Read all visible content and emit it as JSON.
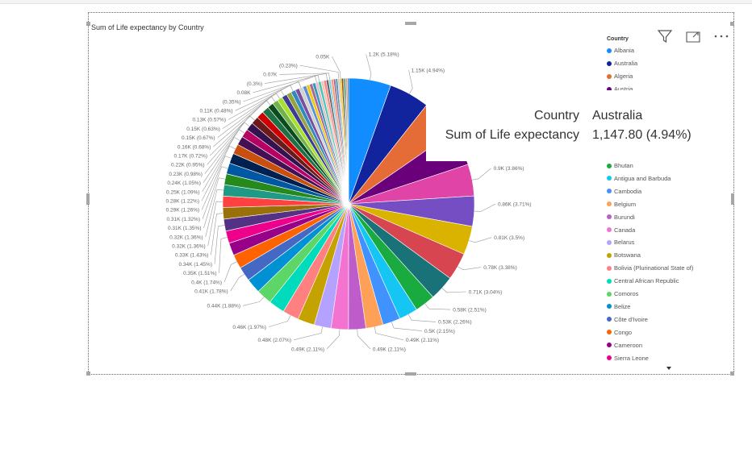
{
  "chart_data": {
    "type": "pie",
    "title": "Sum of Life expectancy by Country",
    "legend_title": "Country",
    "legend_placement": "right",
    "slices": [
      {
        "name": "Albania",
        "value": 1200,
        "label": "1.2K (5.18%)",
        "color": "#118DFF"
      },
      {
        "name": "Australia",
        "value": 1147.8,
        "label": "1.15K (4.94%)",
        "color": "#12239E"
      },
      {
        "name": "Algeria",
        "value": 1050,
        "label": "",
        "color": "#E66C37"
      },
      {
        "name": "Austria",
        "value": 1000,
        "label": "",
        "color": "#6B007B"
      },
      {
        "name": "",
        "value": 900,
        "label": "0.9K (3.86%)",
        "color": "#E044A7"
      },
      {
        "name": "",
        "value": 860,
        "label": "0.86K (3.71%)",
        "color": "#744EC2"
      },
      {
        "name": "",
        "value": 810,
        "label": "0.81K (3.5%)",
        "color": "#D9B300"
      },
      {
        "name": "",
        "value": 780,
        "label": "0.78K (3.38%)",
        "color": "#D64550"
      },
      {
        "name": "",
        "value": 710,
        "label": "0.71K (3.04%)",
        "color": "#197278"
      },
      {
        "name": "",
        "value": 580,
        "label": "0.58K (2.51%)",
        "color": "#1AAB40"
      },
      {
        "name": "",
        "value": 530,
        "label": "0.53K (2.26%)",
        "color": "#15C6F4"
      },
      {
        "name": "",
        "value": 500,
        "label": "0.5K (2.15%)",
        "color": "#4092FF"
      },
      {
        "name": "",
        "value": 490,
        "label": "0.49K (2.11%)",
        "color": "#FFA058"
      },
      {
        "name": "",
        "value": 490,
        "label": "0.49K (2.11%)",
        "color": "#BE5DC9"
      },
      {
        "name": "",
        "value": 490,
        "label": "0.49K (2.11%)",
        "color": "#F472D0"
      },
      {
        "name": "",
        "value": 480,
        "label": "0.48K (2.07%)",
        "color": "#B5A1FF"
      },
      {
        "name": "",
        "value": 480,
        "label": "",
        "color": "#C4A200"
      },
      {
        "name": "",
        "value": 460,
        "label": "0.46K (1.97%)",
        "color": "#FF8080"
      },
      {
        "name": "",
        "value": 460,
        "label": "",
        "color": "#00DBBC"
      },
      {
        "name": "",
        "value": 440,
        "label": "0.44K (1.88%)",
        "color": "#5BD667"
      },
      {
        "name": "",
        "value": 420,
        "label": "",
        "color": "#0091D5"
      },
      {
        "name": "",
        "value": 410,
        "label": "0.41K (1.78%)",
        "color": "#4668C5"
      },
      {
        "name": "",
        "value": 400,
        "label": "0.4K (1.74%)",
        "color": "#FF6300"
      },
      {
        "name": "",
        "value": 360,
        "label": "",
        "color": "#99008A"
      },
      {
        "name": "",
        "value": 350,
        "label": "0.35K (1.51%)",
        "color": "#EC008C"
      },
      {
        "name": "",
        "value": 340,
        "label": "0.34K (1.45%)",
        "color": "#533285"
      },
      {
        "name": "",
        "value": 330,
        "label": "0.33K (1.43%)",
        "color": "#99700A"
      },
      {
        "name": "",
        "value": 320,
        "label": "0.32K (1.36%)",
        "color": "#FF4141"
      },
      {
        "name": "",
        "value": 320,
        "label": "0.32K (1.36%)",
        "color": "#1F9A85"
      },
      {
        "name": "",
        "value": 310,
        "label": "0.31K (1.35%)",
        "color": "#25891C"
      },
      {
        "name": "",
        "value": 310,
        "label": "0.31K (1.32%)",
        "color": "#0057A2"
      },
      {
        "name": "",
        "value": 290,
        "label": "0.29K (1.26%)",
        "color": "#002050"
      },
      {
        "name": "",
        "value": 280,
        "label": "0.28K (1.22%)",
        "color": "#C94F0F"
      },
      {
        "name": "",
        "value": 250,
        "label": "0.25K (1.09%)",
        "color": "#450F54"
      },
      {
        "name": "",
        "value": 240,
        "label": "0.24K (1.05%)",
        "color": "#B60064"
      },
      {
        "name": "",
        "value": 230,
        "label": "0.23K (0.98%)",
        "color": "#34124F"
      },
      {
        "name": "",
        "value": 220,
        "label": "0.22K (0.95%)",
        "color": "#6A1A18"
      },
      {
        "name": "",
        "value": 210,
        "label": "",
        "color": "#CC0000"
      },
      {
        "name": "",
        "value": 200,
        "label": "",
        "color": "#1E7145"
      },
      {
        "name": "",
        "value": 170,
        "label": "0.17K (0.72%)",
        "color": "#0B4B20"
      },
      {
        "name": "",
        "value": 160,
        "label": "0.16K (0.68%)",
        "color": "#71B34A"
      },
      {
        "name": "",
        "value": 150,
        "label": "0.15K (0.67%)",
        "color": "#A8E02E"
      },
      {
        "name": "",
        "value": 150,
        "label": "0.15K (0.63%)",
        "color": "#3C3C96"
      },
      {
        "name": "",
        "value": 140,
        "label": "",
        "color": "#96A53B"
      },
      {
        "name": "",
        "value": 130,
        "label": "0.13K (0.57%)",
        "color": "#2F8AC2"
      },
      {
        "name": "",
        "value": 120,
        "label": "",
        "color": "#7A4FA0"
      },
      {
        "name": "",
        "value": 110,
        "label": "0.11K (0.48%)",
        "color": "#D1D1D1"
      },
      {
        "name": "",
        "value": 100,
        "label": "",
        "color": "#5A8FD8"
      },
      {
        "name": "",
        "value": 95,
        "label": "",
        "color": "#F2C811"
      },
      {
        "name": "",
        "value": 90,
        "label": "",
        "color": "#A66999"
      },
      {
        "name": "",
        "value": 85,
        "label": "",
        "color": "#3599B8"
      },
      {
        "name": "",
        "value": 81,
        "label": "(0.35%)",
        "color": "#DFBFBF"
      },
      {
        "name": "",
        "value": 80,
        "label": "0.08K",
        "color": "#4AC5BB"
      },
      {
        "name": "",
        "value": 75,
        "label": "",
        "color": "#F5C4AF"
      },
      {
        "name": "",
        "value": 72,
        "label": "",
        "color": "#FB8281"
      },
      {
        "name": "",
        "value": 70,
        "label": "(0.3%)",
        "color": "#5F6B6D"
      },
      {
        "name": "",
        "value": 70,
        "label": "0.07K",
        "color": "#8AD4EB"
      },
      {
        "name": "",
        "value": 66,
        "label": "",
        "color": "#FE9666"
      },
      {
        "name": "",
        "value": 62,
        "label": "",
        "color": "#A66999"
      },
      {
        "name": "",
        "value": 58,
        "label": "",
        "color": "#3599B8"
      },
      {
        "name": "",
        "value": 55,
        "label": "(0.23%)",
        "color": "#DFBFBF"
      },
      {
        "name": "",
        "value": 52,
        "label": "0.05K",
        "color": "#F2C80F"
      },
      {
        "name": "",
        "value": 48,
        "label": "",
        "color": "#8B4513"
      },
      {
        "name": "",
        "value": 44,
        "label": "",
        "color": "#2E8B57"
      },
      {
        "name": "",
        "value": 40,
        "label": "",
        "color": "#708090"
      },
      {
        "name": "",
        "value": 36,
        "label": "",
        "color": "#B8860B"
      },
      {
        "name": "",
        "value": 32,
        "label": "",
        "color": "#483D8B"
      }
    ]
  },
  "legend": {
    "top_items": [
      {
        "label": "Albania",
        "color": "#118DFF"
      },
      {
        "label": "Australia",
        "color": "#12239E"
      },
      {
        "label": "Algeria",
        "color": "#E66C37"
      },
      {
        "label": "Austria",
        "color": "#6B007B"
      }
    ],
    "items": [
      {
        "label": "Bhutan",
        "color": "#1AAB40"
      },
      {
        "label": "Antigua and Barbuda",
        "color": "#15C6F4"
      },
      {
        "label": "Cambodia",
        "color": "#4092FF"
      },
      {
        "label": "Belgium",
        "color": "#FFA058"
      },
      {
        "label": "Burundi",
        "color": "#BE5DC9"
      },
      {
        "label": "Canada",
        "color": "#F472D0"
      },
      {
        "label": "Belarus",
        "color": "#B5A1FF"
      },
      {
        "label": "Botswana",
        "color": "#C4A200"
      },
      {
        "label": "Bolivia (Plurinational State of)",
        "color": "#FF8080"
      },
      {
        "label": "Central African Republic",
        "color": "#00DBBC"
      },
      {
        "label": "Comoros",
        "color": "#5BD667"
      },
      {
        "label": "Belize",
        "color": "#0091D5"
      },
      {
        "label": "Côte d'Ivoire",
        "color": "#4668C5"
      },
      {
        "label": "Congo",
        "color": "#FF6300"
      },
      {
        "label": "Cameroon",
        "color": "#99008A"
      },
      {
        "label": "Sierra Leone",
        "color": "#EC008C"
      }
    ]
  },
  "tooltip": {
    "key1": "Country",
    "val1": "Australia",
    "key2": "Sum of Life expectancy",
    "val2": "1,147.80 (4.94%)"
  },
  "icons": {
    "filter": "filter-icon",
    "focus": "focus-mode-icon",
    "more": "more-options-icon"
  }
}
